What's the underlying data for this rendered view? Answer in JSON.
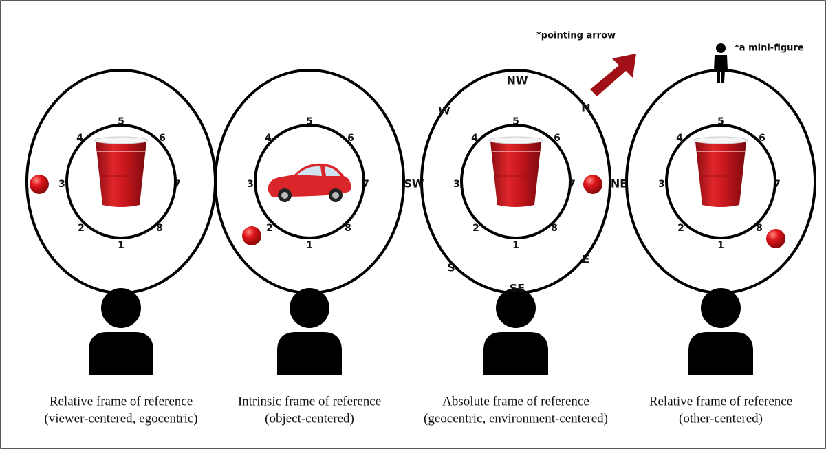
{
  "annotations": {
    "pointing_arrow": "*pointing arrow",
    "mini_figure": "*a mini-figure"
  },
  "panels": [
    {
      "positions": [
        "1",
        "2",
        "3",
        "4",
        "5",
        "6",
        "7",
        "8"
      ],
      "caption": [
        "Relative frame of reference",
        "(viewer-centered, egocentric)"
      ]
    },
    {
      "positions": [
        "1",
        "2",
        "3",
        "4",
        "5",
        "6",
        "7",
        "8"
      ],
      "caption": [
        "Intrinsic frame of reference",
        "(object-centered)"
      ]
    },
    {
      "positions": [
        "1",
        "2",
        "3",
        "4",
        "5",
        "6",
        "7",
        "8"
      ],
      "caption": [
        "Absolute frame of reference",
        "(geocentric, environment-centered)"
      ]
    },
    {
      "positions": [
        "1",
        "2",
        "3",
        "4",
        "5",
        "6",
        "7",
        "8"
      ],
      "caption": [
        "Relative frame of reference",
        "(other-centered)"
      ]
    }
  ],
  "compass": [
    "NW",
    "N",
    "W",
    "SW",
    "NE",
    "E",
    "S",
    "SE"
  ]
}
